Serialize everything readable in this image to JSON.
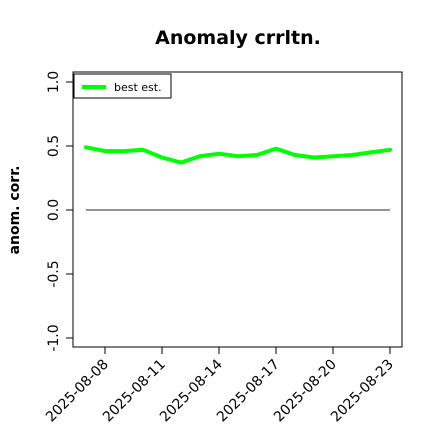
{
  "chart_data": {
    "type": "line",
    "title": "Anomaly crrltn.",
    "ylabel": "anom. corr.",
    "xlabel": "",
    "ylim": [
      -1.0,
      1.0
    ],
    "y_ticks": [
      -1.0,
      -0.5,
      0.0,
      0.5,
      1.0
    ],
    "y_tick_labels": [
      "-1.0",
      "-0.5",
      "0.0",
      "0.5",
      "1.0"
    ],
    "x": [
      "2025-08-07",
      "2025-08-08",
      "2025-08-09",
      "2025-08-10",
      "2025-08-11",
      "2025-08-12",
      "2025-08-13",
      "2025-08-14",
      "2025-08-15",
      "2025-08-16",
      "2025-08-17",
      "2025-08-18",
      "2025-08-19",
      "2025-08-20",
      "2025-08-21",
      "2025-08-22",
      "2025-08-23"
    ],
    "x_tick_labels": [
      "2025-08-08",
      "2025-08-11",
      "2025-08-14",
      "2025-08-17",
      "2025-08-20",
      "2025-08-23"
    ],
    "series": [
      {
        "name": "best est.",
        "color": "#00ff00",
        "values": [
          0.49,
          0.46,
          0.46,
          0.47,
          0.41,
          0.37,
          0.42,
          0.44,
          0.42,
          0.43,
          0.48,
          0.43,
          0.41,
          0.42,
          0.43,
          0.45,
          0.47
        ]
      }
    ],
    "reference_line": {
      "y": 0.0,
      "color": "#555555"
    },
    "legend_position": "top-left",
    "grid": false
  }
}
